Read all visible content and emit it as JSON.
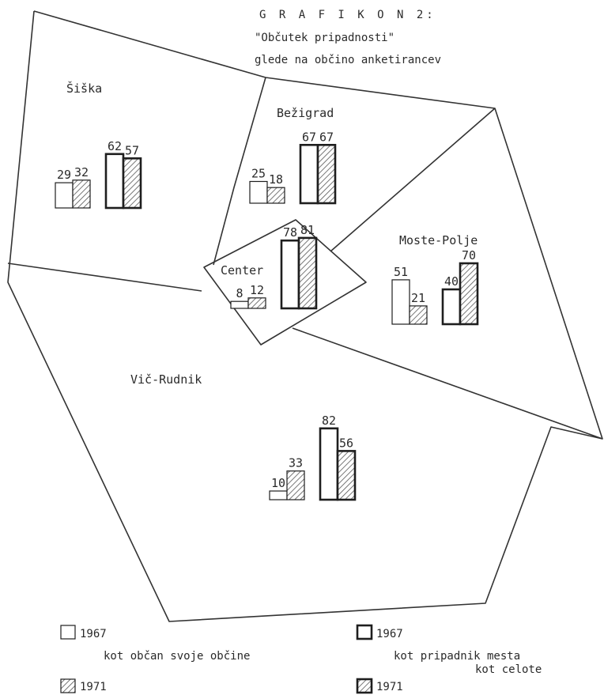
{
  "title": "G R A F I K O N  2:",
  "subtitle_line1": "\"Občutek pripadnosti\"",
  "subtitle_line2": "glede na občino anketirancev",
  "legend": {
    "year_1967": "1967",
    "year_1971": "1971",
    "group_citizen": "kot občan svoje občine",
    "group_city_line1": "kot pripadnik mesta",
    "group_city_line2": "kot celote"
  },
  "colors": {
    "ink": "#1e1e1e",
    "paper": "#ffffff",
    "hatch": "#555555"
  },
  "chart_data": {
    "type": "bar",
    "layout": "cartogram",
    "groups": [
      "kot občan svoje občine",
      "kot pripadnik mesta kot celote"
    ],
    "years": [
      "1967",
      "1971"
    ],
    "regions": [
      {
        "name": "Šiška",
        "citizen": [
          29,
          32
        ],
        "city": [
          62,
          57
        ]
      },
      {
        "name": "Bežigrad",
        "citizen": [
          25,
          18
        ],
        "city": [
          67,
          67
        ]
      },
      {
        "name": "Center",
        "citizen": [
          8,
          12
        ],
        "city": [
          78,
          81
        ]
      },
      {
        "name": "Moste-Polje",
        "citizen": [
          51,
          21
        ],
        "city": [
          40,
          70
        ]
      },
      {
        "name": "Vič-Rudnik",
        "citizen": [
          10,
          33
        ],
        "city": [
          82,
          56
        ]
      }
    ]
  }
}
